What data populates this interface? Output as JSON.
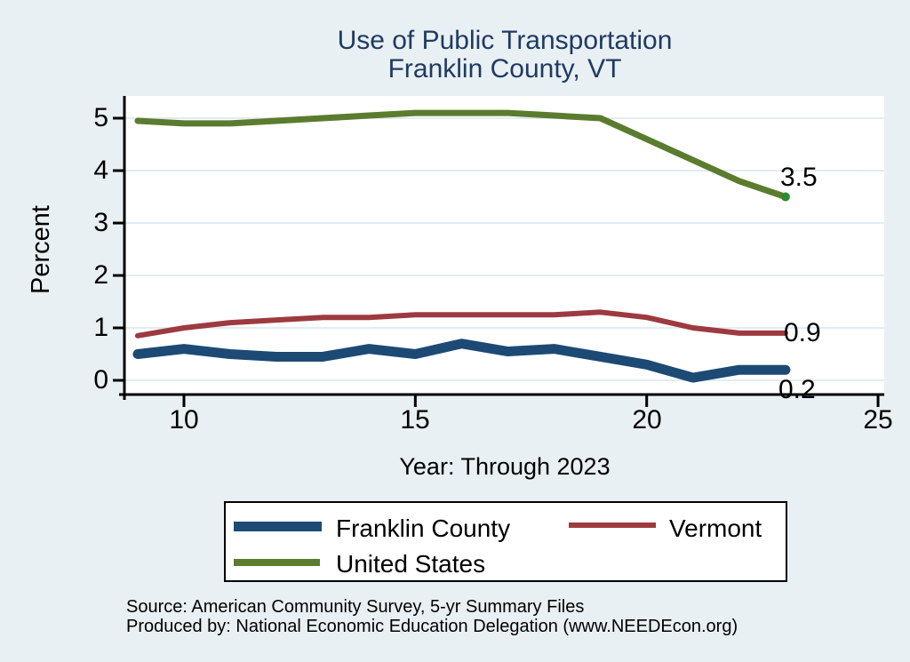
{
  "page": {
    "title_line1": "Use of Public Transportation",
    "title_line2": "Franklin County, VT",
    "source_line1": "Source: American Community Survey, 5-yr Summary Files",
    "source_line2": "Produced by: National Economic Education Delegation (www.NEEDEcon.org)"
  },
  "chart_data": {
    "type": "line",
    "title": "Use of Public Transportation",
    "subtitle": "Franklin County, VT",
    "xlabel": "Year: Through 2023",
    "ylabel": "Percent",
    "x": [
      9,
      10,
      11,
      12,
      13,
      14,
      15,
      16,
      17,
      18,
      19,
      20,
      21,
      22,
      23
    ],
    "series": [
      {
        "name": "Franklin County",
        "color": "#1d4a74",
        "line_width": 11,
        "values": [
          0.5,
          0.6,
          0.5,
          0.45,
          0.45,
          0.6,
          0.5,
          0.7,
          0.55,
          0.6,
          0.45,
          0.3,
          0.05,
          0.2,
          0.2
        ],
        "end_label": "0.2"
      },
      {
        "name": "Vermont",
        "color": "#9d3a40",
        "line_width": 6,
        "values": [
          0.85,
          1.0,
          1.1,
          1.15,
          1.2,
          1.2,
          1.25,
          1.25,
          1.25,
          1.25,
          1.3,
          1.2,
          1.0,
          0.9,
          0.9
        ],
        "end_label": "0.9"
      },
      {
        "name": "United States",
        "color": "#5b7c2f",
        "line_width": 7,
        "values": [
          4.95,
          4.9,
          4.9,
          4.95,
          5.0,
          5.05,
          5.1,
          5.1,
          5.1,
          5.05,
          5.0,
          4.6,
          4.2,
          3.8,
          3.5
        ],
        "end_label": "3.5",
        "end_dot": true
      }
    ],
    "xtick_values": [
      10,
      15,
      20,
      25
    ],
    "xtick_labels": [
      "10",
      "15",
      "20",
      "25"
    ],
    "ytick_values": [
      0,
      1,
      2,
      3,
      4,
      5
    ],
    "ytick_labels": [
      "0",
      "1",
      "2",
      "3",
      "4",
      "5"
    ],
    "xlim": [
      8.7,
      25.2
    ],
    "ylim": [
      -0.3,
      5.4
    ],
    "grid": true,
    "legend_position": "bottom",
    "end_dot_color": "#2e8b2e",
    "colors": {
      "background": "#e9f0f3",
      "plot_background": "#ffffff",
      "gridline": "#e2ecf2",
      "axis": "#000000",
      "title_text": "#1f3a63"
    }
  }
}
